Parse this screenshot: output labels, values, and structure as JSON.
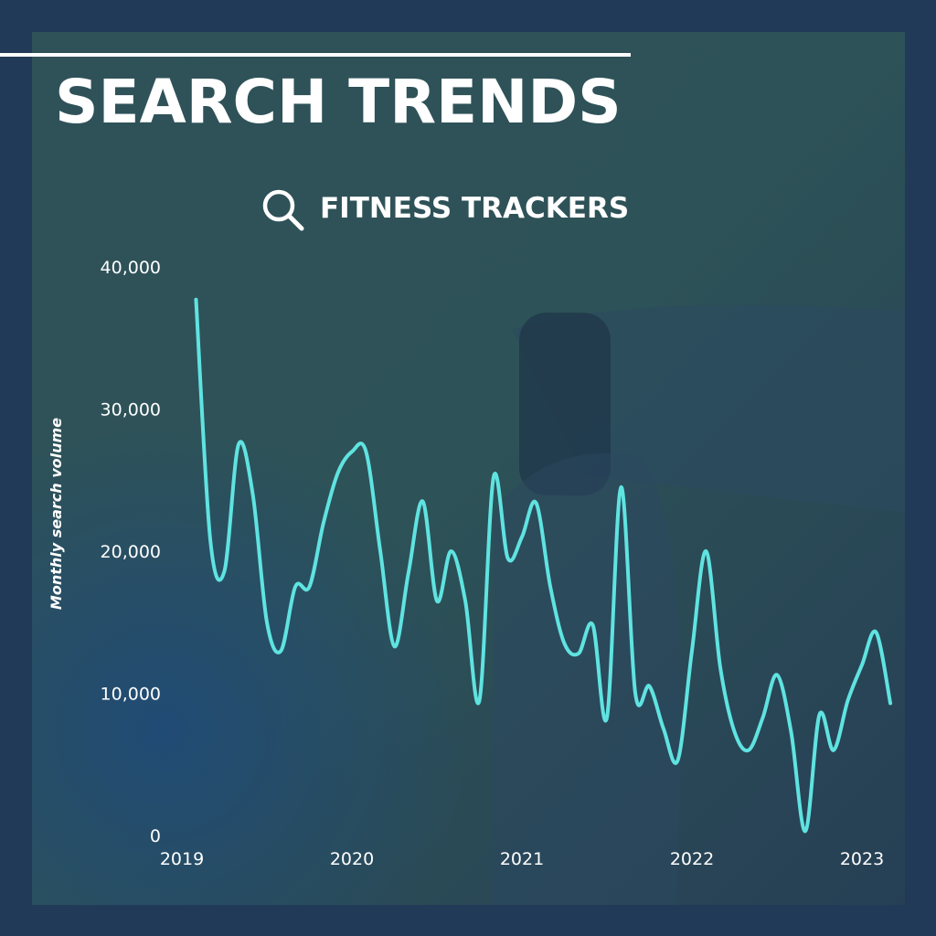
{
  "chart_data": {
    "type": "line",
    "title": "SEARCH TRENDS",
    "subtitle": "FITNESS TRACKERS",
    "y_label": "Monthly search volume",
    "x": [
      2019.083,
      2019.167,
      2019.25,
      2019.333,
      2019.417,
      2019.5,
      2019.583,
      2019.667,
      2019.75,
      2019.833,
      2019.917,
      2020,
      2020.083,
      2020.167,
      2020.25,
      2020.333,
      2020.417,
      2020.5,
      2020.583,
      2020.667,
      2020.75,
      2020.833,
      2020.917,
      2021,
      2021.083,
      2021.167,
      2021.25,
      2021.333,
      2021.417,
      2021.5,
      2021.583,
      2021.667,
      2021.75,
      2021.833,
      2021.917,
      2022,
      2022.083,
      2022.167,
      2022.25,
      2022.333,
      2022.417,
      2022.5,
      2022.583,
      2022.667,
      2022.75,
      2022.833,
      2022.917,
      2023,
      2023.083,
      2023.167
    ],
    "values": [
      37700,
      20800,
      18600,
      27500,
      24000,
      15000,
      13000,
      17500,
      17500,
      22000,
      25500,
      27000,
      27000,
      20000,
      13300,
      18500,
      23500,
      16500,
      20000,
      16500,
      9500,
      25200,
      19500,
      21000,
      23400,
      17500,
      13500,
      12800,
      14800,
      8300,
      24500,
      10000,
      10500,
      7500,
      5300,
      13000,
      20000,
      11800,
      7300,
      6000,
      8300,
      11300,
      7300,
      300,
      8500,
      6000,
      9500,
      12000,
      14300,
      9300
    ],
    "color": "#5fe3e1",
    "xlim": [
      2019,
      2023.2
    ],
    "xticks": [
      2019,
      2020,
      2021,
      2022,
      2023
    ],
    "ylim": [
      0,
      40000
    ],
    "yticks": [
      0,
      {
        "value": 10000,
        "label": "10,000"
      },
      {
        "value": 20000,
        "label": "20,000"
      },
      {
        "value": 30000,
        "label": "30,000"
      },
      {
        "value": 40000,
        "label": "40,000"
      }
    ],
    "grid": false
  }
}
